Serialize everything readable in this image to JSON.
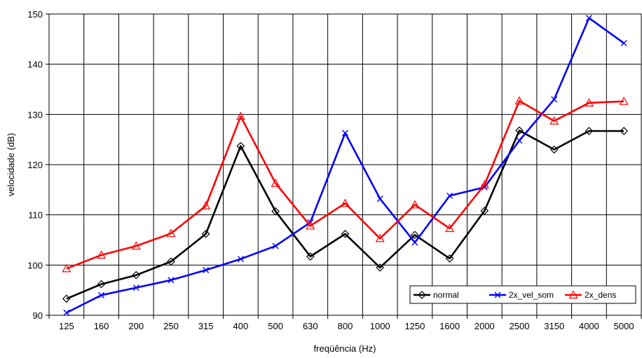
{
  "chart_data": {
    "type": "line",
    "xlabel": "freqüência (Hz)",
    "ylabel": "velocidade (dB)",
    "ylim": [
      90,
      150
    ],
    "yticks": [
      90,
      100,
      110,
      120,
      130,
      140,
      150
    ],
    "grid": true,
    "legend_position": "bottom-right",
    "categories": [
      "125",
      "160",
      "200",
      "250",
      "315",
      "400",
      "500",
      "630",
      "800",
      "1000",
      "1250",
      "1600",
      "2000",
      "2500",
      "3150",
      "4000",
      "5000"
    ],
    "series": [
      {
        "name": "normal",
        "color": "#000000",
        "marker": "diamond",
        "values": [
          93.3,
          96.2,
          98.0,
          100.7,
          106.2,
          123.7,
          110.7,
          101.7,
          106.2,
          99.5,
          106.0,
          101.3,
          110.8,
          126.8,
          123.0,
          126.7,
          126.7
        ]
      },
      {
        "name": "2x_vel_som",
        "color": "#0000ff",
        "marker": "x",
        "values": [
          90.5,
          94.0,
          95.5,
          97.0,
          99.0,
          101.2,
          103.8,
          108.5,
          126.3,
          113.2,
          104.5,
          113.8,
          115.5,
          124.8,
          133.0,
          149.2,
          144.2
        ]
      },
      {
        "name": "2x_dens",
        "color": "#ff0000",
        "marker": "triangle",
        "values": [
          99.3,
          102.0,
          103.8,
          106.3,
          111.8,
          129.6,
          116.3,
          107.8,
          112.3,
          105.3,
          112.0,
          107.3,
          116.0,
          132.7,
          128.7,
          132.3,
          132.6
        ]
      }
    ]
  }
}
